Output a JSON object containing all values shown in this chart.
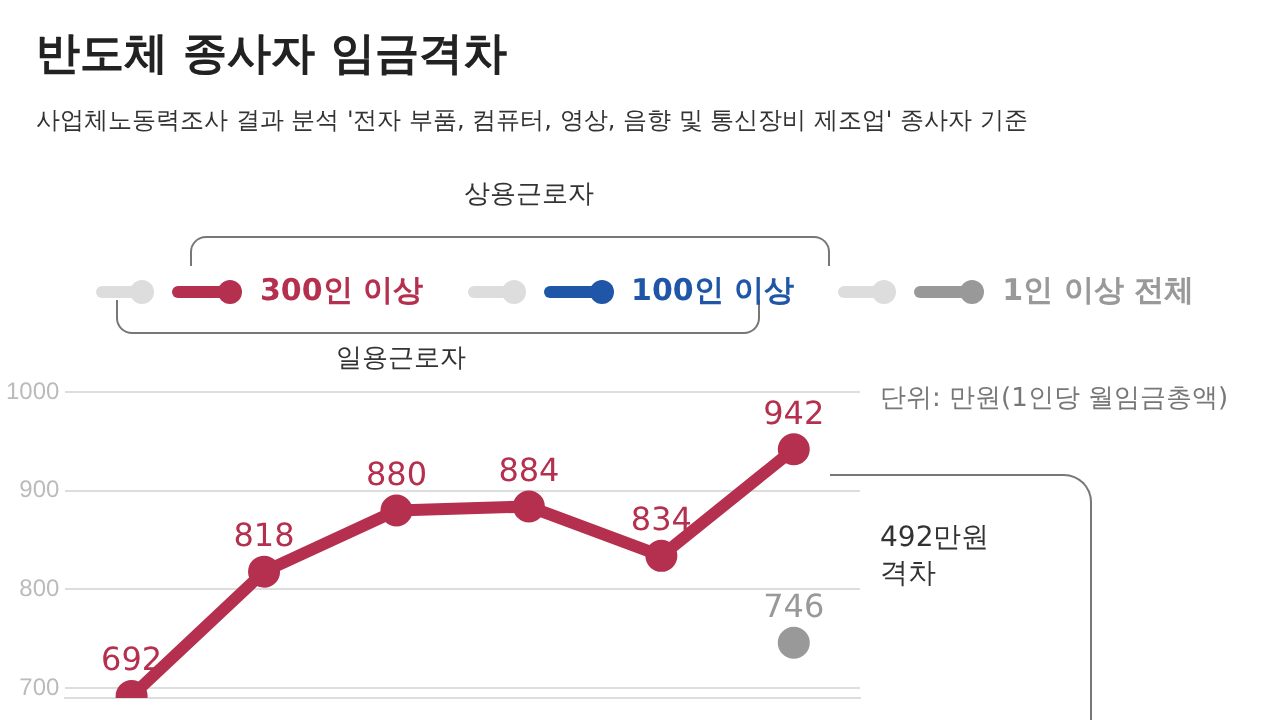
{
  "chart_data": {
    "type": "line",
    "title": "반도체 종사자 임금격차",
    "subtitle": "사업체노동력조사 결과 분석 '전자 부품, 컴퓨터, 영상, 음향 및 통신장비 제조업' 종사자 기준",
    "annotations": [
      "상용근로자",
      "일용근로자",
      "단위: 만원(1인당 월임금총액)",
      "492만원 격차"
    ],
    "categories": [
      null,
      null,
      null,
      null,
      null,
      null
    ],
    "series": [
      {
        "name": "300인 이상",
        "color": "#b5304f",
        "values": [
          692,
          818,
          880,
          884,
          834,
          942
        ]
      },
      {
        "name": "100인 이상",
        "color": "#1f56a8",
        "values": [
          null,
          null,
          null,
          null,
          null,
          null
        ]
      },
      {
        "name": "1인 이상 전체",
        "color": "#999999",
        "values": [
          null,
          null,
          null,
          null,
          null,
          746
        ]
      }
    ],
    "ylim": [
      690,
      1000
    ],
    "yticks": [
      700,
      800,
      900,
      1000
    ],
    "grid": "y",
    "legend": "top",
    "marker": "circle",
    "line_style": "solid",
    "data_labels": true,
    "tick_labels": "y"
  }
}
